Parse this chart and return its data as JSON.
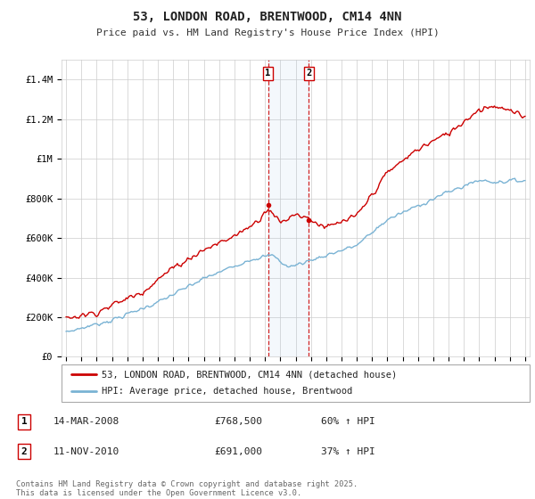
{
  "title": "53, LONDON ROAD, BRENTWOOD, CM14 4NN",
  "subtitle": "Price paid vs. HM Land Registry's House Price Index (HPI)",
  "hpi_color": "#7ab3d4",
  "price_color": "#cc0000",
  "background_color": "#ffffff",
  "grid_color": "#cccccc",
  "ylim": [
    0,
    1500000
  ],
  "yticks": [
    0,
    200000,
    400000,
    600000,
    800000,
    1000000,
    1200000,
    1400000
  ],
  "ytick_labels": [
    "£0",
    "£200K",
    "£400K",
    "£600K",
    "£800K",
    "£1M",
    "£1.2M",
    "£1.4M"
  ],
  "year_start": 1995,
  "year_end": 2025,
  "sale1_year": 2008.2,
  "sale1_price": 768500,
  "sale2_year": 2010.87,
  "sale2_price": 691000,
  "sale1_label": "1",
  "sale2_label": "2",
  "sale1_date": "14-MAR-2008",
  "sale1_amount": "£768,500",
  "sale1_hpi": "60% ↑ HPI",
  "sale2_date": "11-NOV-2010",
  "sale2_amount": "£691,000",
  "sale2_hpi": "37% ↑ HPI",
  "legend1": "53, LONDON ROAD, BRENTWOOD, CM14 4NN (detached house)",
  "legend2": "HPI: Average price, detached house, Brentwood",
  "footnote": "Contains HM Land Registry data © Crown copyright and database right 2025.\nThis data is licensed under the Open Government Licence v3.0."
}
